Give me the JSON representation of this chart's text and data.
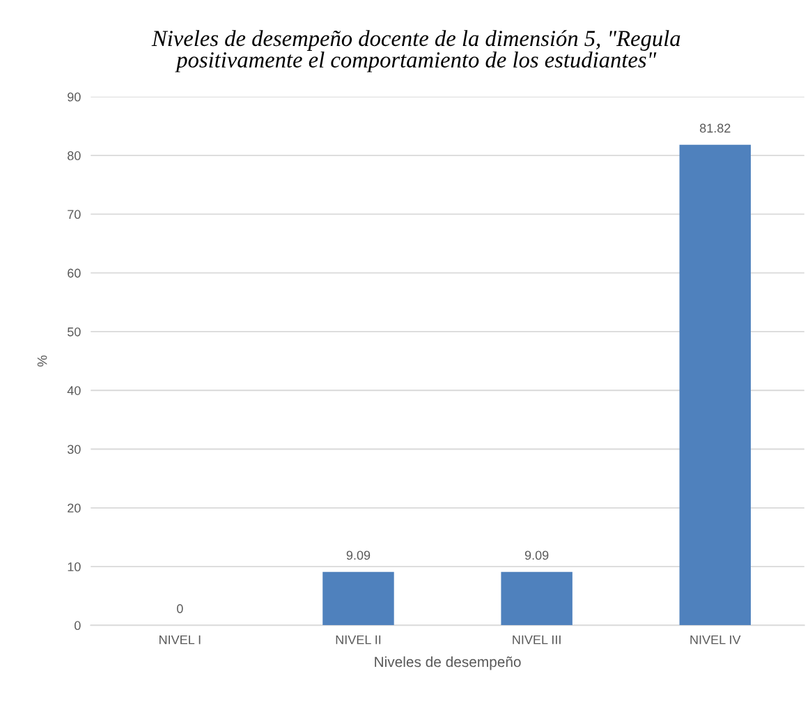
{
  "chart_data": {
    "type": "bar",
    "title": "Niveles de desempeño docente de la dimensión 5, \"Regula positivamente el comportamiento de los estudiantes\"",
    "xlabel": "Niveles de desempeño",
    "ylabel": "%",
    "categories": [
      "NIVEL I",
      "NIVEL II",
      "NIVEL III",
      "NIVEL IV"
    ],
    "values": [
      0,
      9.09,
      9.09,
      81.82
    ],
    "color": "#4f81bd",
    "ylim": [
      0,
      90
    ],
    "yticks": [
      0,
      10,
      20,
      30,
      40,
      50,
      60,
      70,
      80,
      90
    ],
    "grid": "y",
    "data_labels": true
  }
}
